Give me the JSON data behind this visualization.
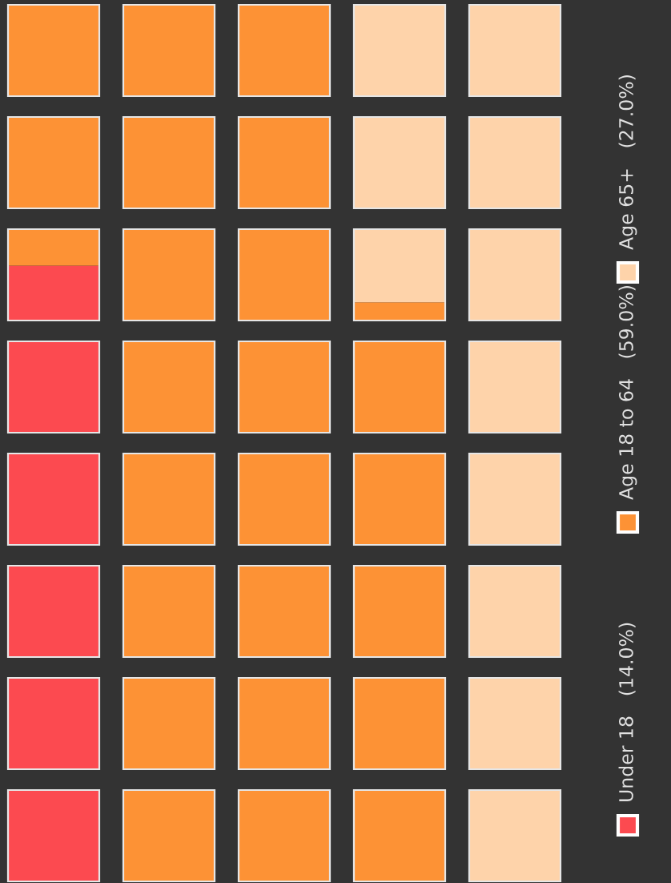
{
  "chart_data": {
    "type": "other",
    "categories": [
      "Under 18",
      "Age 18 to 64",
      "Age 65+"
    ],
    "values": [
      14.0,
      59.0,
      27.0
    ],
    "value_labels": [
      "(14.0%)",
      "(59.0%)",
      "(27.0%)"
    ],
    "colors": [
      "#fc4a50",
      "#fd9235",
      "#fed3aa"
    ]
  }
}
